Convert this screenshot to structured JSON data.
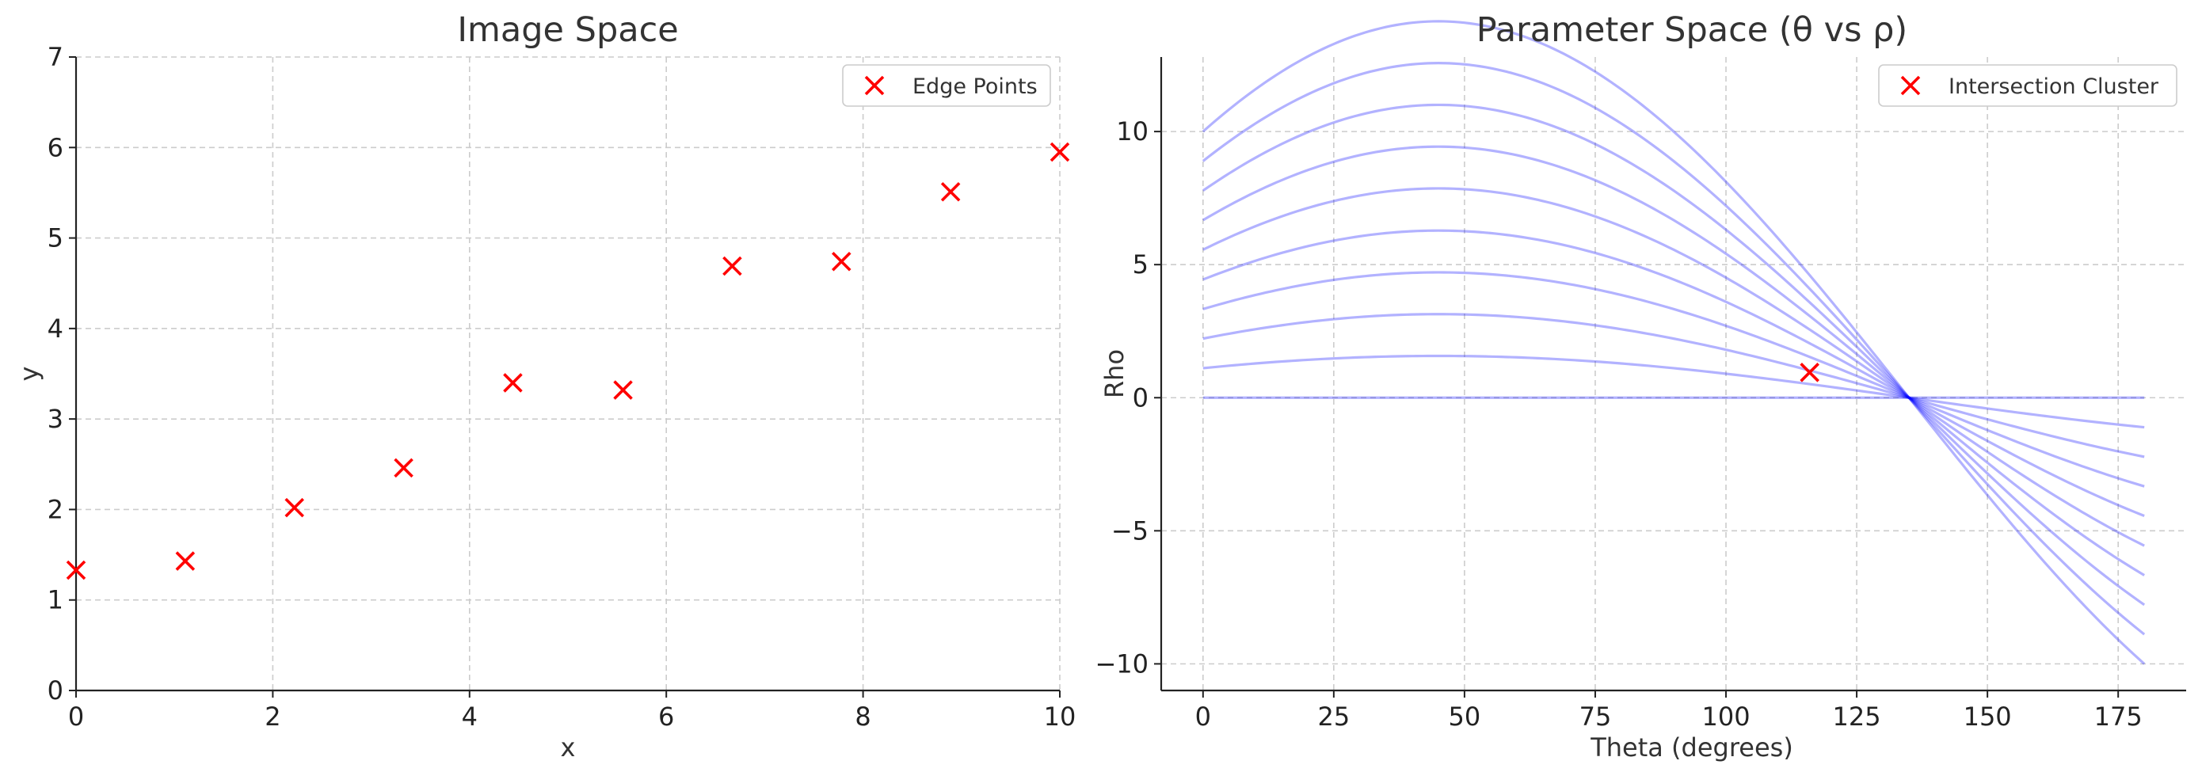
{
  "colors": {
    "marker": "#ff0000",
    "curve": "#0000ff",
    "cluster": "#ff0000",
    "text": "#333333",
    "grid": "#cccccc"
  },
  "chart_data": [
    {
      "type": "scatter",
      "title": "Image Space",
      "xlabel": "x",
      "ylabel": "y",
      "xlim": [
        0,
        10
      ],
      "ylim": [
        0,
        7
      ],
      "xticks": [
        0,
        2,
        4,
        6,
        8,
        10
      ],
      "yticks": [
        0,
        1,
        2,
        3,
        4,
        5,
        6,
        7
      ],
      "grid": true,
      "legend_position": "top-right",
      "series": [
        {
          "name": "Edge Points",
          "marker": "x",
          "x": [
            0,
            1.11,
            2.22,
            3.33,
            4.44,
            5.56,
            6.67,
            7.78,
            8.89,
            10
          ],
          "y": [
            1.33,
            1.43,
            2.02,
            2.46,
            3.4,
            3.32,
            4.69,
            4.74,
            5.51,
            5.95
          ]
        }
      ]
    },
    {
      "type": "line",
      "title": "Parameter Space (θ vs ρ)",
      "xlabel": "Theta (degrees)",
      "ylabel": "Rho",
      "xlim": [
        -8,
        188
      ],
      "ylim": [
        -11,
        12.8
      ],
      "xticks": [
        0,
        25,
        50,
        75,
        100,
        125,
        150,
        175
      ],
      "yticks": [
        -10,
        -5,
        0,
        5,
        10
      ],
      "grid": true,
      "legend_position": "top-right",
      "theta_range": [
        0,
        180
      ],
      "curves": [
        {
          "x": 0,
          "y": 0
        },
        {
          "x": 1.11,
          "y": 1.11
        },
        {
          "x": 2.22,
          "y": 2.22
        },
        {
          "x": 3.33,
          "y": 3.33
        },
        {
          "x": 4.44,
          "y": 4.44
        },
        {
          "x": 5.56,
          "y": 5.56
        },
        {
          "x": 6.67,
          "y": 6.67
        },
        {
          "x": 7.78,
          "y": 7.78
        },
        {
          "x": 8.89,
          "y": 8.89
        },
        {
          "x": 10,
          "y": 10
        }
      ],
      "cluster": {
        "name": "Intersection Cluster",
        "marker": "x",
        "x": [
          116
        ],
        "y": [
          0.95
        ]
      }
    }
  ]
}
